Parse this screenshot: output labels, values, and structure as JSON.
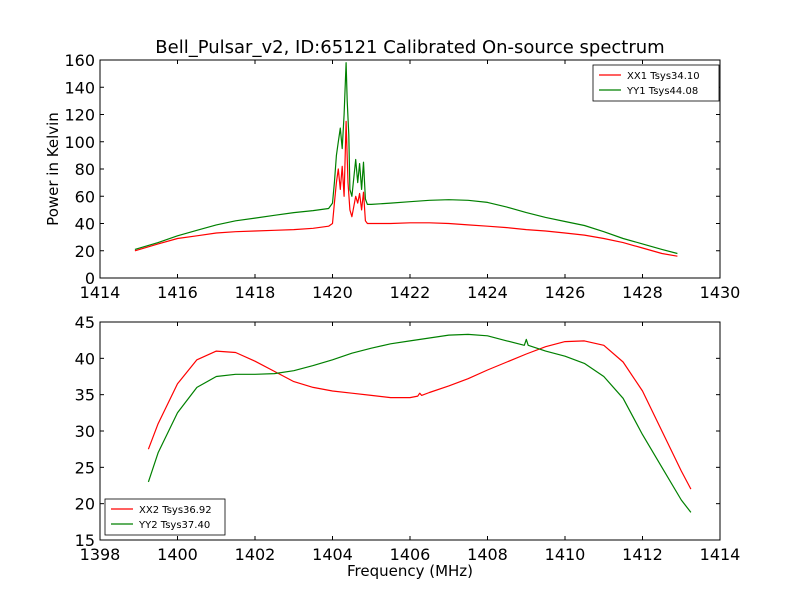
{
  "figure": {
    "title": "Bell_Pulsar_v2, ID:65121 Calibrated On-source spectrum"
  },
  "chart_data": [
    {
      "type": "line",
      "title": "Bell_Pulsar_v2, ID:65121 Calibrated On-source spectrum",
      "xlabel": "",
      "ylabel": "Power in Kelvin",
      "xlim": [
        1414,
        1430
      ],
      "ylim": [
        0,
        160
      ],
      "xticks": [
        1414,
        1416,
        1418,
        1420,
        1422,
        1424,
        1426,
        1428,
        1430
      ],
      "yticks": [
        0,
        20,
        40,
        60,
        80,
        100,
        120,
        140,
        160
      ],
      "grid": false,
      "legend": "top-right",
      "series": [
        {
          "name": "XX1 Tsys34.10",
          "color": "#ff0000",
          "x": [
            1414.9,
            1415.5,
            1416,
            1416.5,
            1417,
            1417.5,
            1418,
            1418.5,
            1419,
            1419.5,
            1419.9,
            1420.0,
            1420.05,
            1420.1,
            1420.15,
            1420.2,
            1420.25,
            1420.3,
            1420.35,
            1420.4,
            1420.45,
            1420.5,
            1420.6,
            1420.65,
            1420.7,
            1420.75,
            1420.8,
            1420.85,
            1420.9,
            1420.95,
            1421.0,
            1421.5,
            1422,
            1422.5,
            1423,
            1423.5,
            1424,
            1424.5,
            1425,
            1425.5,
            1426,
            1426.5,
            1427,
            1427.5,
            1428,
            1428.5,
            1428.9
          ],
          "y": [
            20,
            25,
            29,
            31,
            33,
            34,
            34.5,
            35,
            35.5,
            36.5,
            38,
            40,
            55,
            70,
            80,
            65,
            82,
            60,
            115,
            70,
            50,
            45,
            60,
            55,
            62,
            50,
            63,
            42,
            40,
            40,
            40,
            40,
            40.5,
            40.5,
            40,
            39,
            38,
            37,
            35.5,
            34.5,
            33,
            31.5,
            29,
            26,
            22,
            18,
            16
          ]
        },
        {
          "name": "YY1 Tsys44.08",
          "color": "#008000",
          "x": [
            1414.9,
            1415.5,
            1416,
            1416.5,
            1417,
            1417.5,
            1418,
            1418.5,
            1419,
            1419.5,
            1419.9,
            1420.0,
            1420.05,
            1420.1,
            1420.15,
            1420.2,
            1420.25,
            1420.3,
            1420.35,
            1420.38,
            1420.42,
            1420.45,
            1420.5,
            1420.6,
            1420.65,
            1420.7,
            1420.75,
            1420.8,
            1420.85,
            1420.9,
            1420.95,
            1421.0,
            1421.5,
            1422,
            1422.5,
            1423,
            1423.5,
            1424,
            1424.5,
            1425,
            1425.5,
            1426,
            1426.5,
            1427,
            1427.5,
            1428,
            1428.5,
            1428.9
          ],
          "y": [
            21,
            26,
            31,
            35,
            39,
            42,
            44,
            46,
            48,
            49.5,
            51,
            55,
            70,
            90,
            100,
            110,
            95,
            120,
            158,
            130,
            105,
            65,
            60,
            87,
            70,
            84,
            65,
            85,
            58,
            54,
            54,
            54,
            55,
            56,
            57,
            57.5,
            57,
            55.5,
            52,
            48,
            44.5,
            41.5,
            38.5,
            34,
            29,
            25,
            21,
            18
          ]
        }
      ]
    },
    {
      "type": "line",
      "title": "",
      "xlabel": "Frequency (MHz)",
      "ylabel": "",
      "xlim": [
        1398,
        1414
      ],
      "ylim": [
        15,
        45
      ],
      "xticks": [
        1398,
        1400,
        1402,
        1404,
        1406,
        1408,
        1410,
        1412,
        1414
      ],
      "yticks": [
        15,
        20,
        25,
        30,
        35,
        40,
        45
      ],
      "grid": false,
      "legend": "bottom-left",
      "series": [
        {
          "name": "XX2 Tsys36.92",
          "color": "#ff0000",
          "x": [
            1399.25,
            1399.5,
            1400,
            1400.5,
            1401,
            1401.5,
            1402,
            1402.5,
            1403,
            1403.5,
            1404,
            1404.5,
            1405,
            1405.5,
            1406,
            1406.2,
            1406.25,
            1406.3,
            1406.5,
            1407,
            1407.5,
            1408,
            1408.5,
            1409,
            1409.5,
            1410,
            1410.5,
            1411,
            1411.5,
            1412,
            1412.5,
            1413,
            1413.25
          ],
          "y": [
            27.5,
            31,
            36.5,
            39.8,
            41,
            40.8,
            39.6,
            38.2,
            36.8,
            36,
            35.5,
            35.2,
            34.9,
            34.6,
            34.6,
            34.8,
            35.2,
            34.9,
            35.3,
            36.2,
            37.2,
            38.4,
            39.5,
            40.6,
            41.6,
            42.3,
            42.4,
            41.8,
            39.5,
            35.5,
            30,
            24.5,
            22
          ]
        },
        {
          "name": "YY2 Tsys37.40",
          "color": "#008000",
          "x": [
            1399.25,
            1399.5,
            1400,
            1400.5,
            1401,
            1401.5,
            1402,
            1402.5,
            1403,
            1403.5,
            1404,
            1404.5,
            1405,
            1405.5,
            1406,
            1406.5,
            1407,
            1407.5,
            1408,
            1408.5,
            1408.95,
            1409.0,
            1409.05,
            1409.5,
            1410,
            1410.5,
            1411,
            1411.5,
            1412,
            1412.5,
            1413,
            1413.25
          ],
          "y": [
            23,
            27,
            32.5,
            36,
            37.5,
            37.8,
            37.8,
            37.9,
            38.3,
            39,
            39.8,
            40.7,
            41.4,
            42,
            42.4,
            42.8,
            43.2,
            43.3,
            43.1,
            42.4,
            41.8,
            42.6,
            41.8,
            41,
            40.3,
            39.3,
            37.5,
            34.5,
            29.5,
            25,
            20.5,
            18.8
          ]
        }
      ]
    }
  ]
}
